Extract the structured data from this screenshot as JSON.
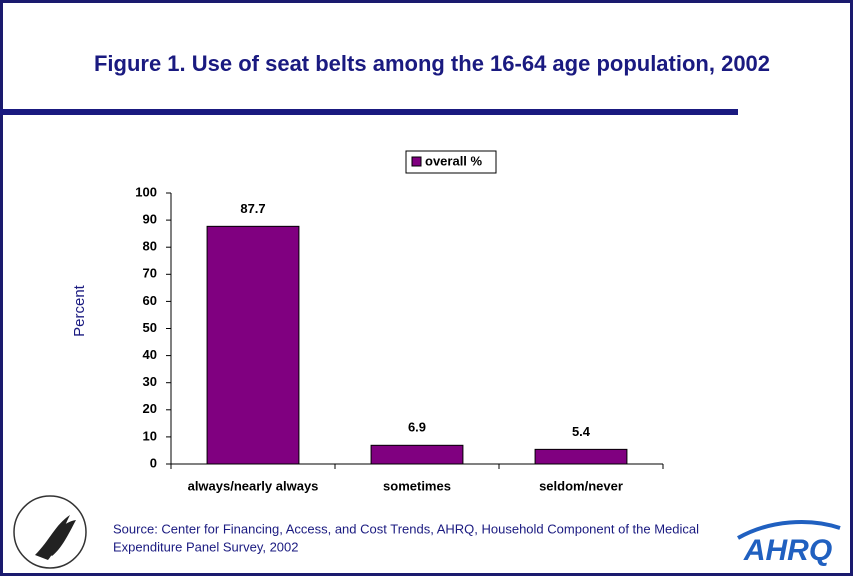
{
  "chart_data": {
    "type": "bar",
    "title": "Figure 1. Use of seat belts among the 16-64 age population, 2002",
    "y_label": "Percent",
    "categories": [
      "always/nearly always",
      "sometimes",
      "seldom/never"
    ],
    "series": [
      {
        "name": "overall %",
        "color": "#800080",
        "values": [
          87.7,
          6.9,
          5.4
        ]
      }
    ],
    "ylim": [
      0,
      100
    ],
    "yticks": [
      0,
      10,
      20,
      30,
      40,
      50,
      60,
      70,
      80,
      90,
      100
    ],
    "legend": "top",
    "source": [
      "Source: Center for Financing, Access, and Cost Trends, AHRQ, Household Component of the Medical",
      "Expenditure Panel Survey, 2002"
    ],
    "logo_text": "AHRQ"
  }
}
